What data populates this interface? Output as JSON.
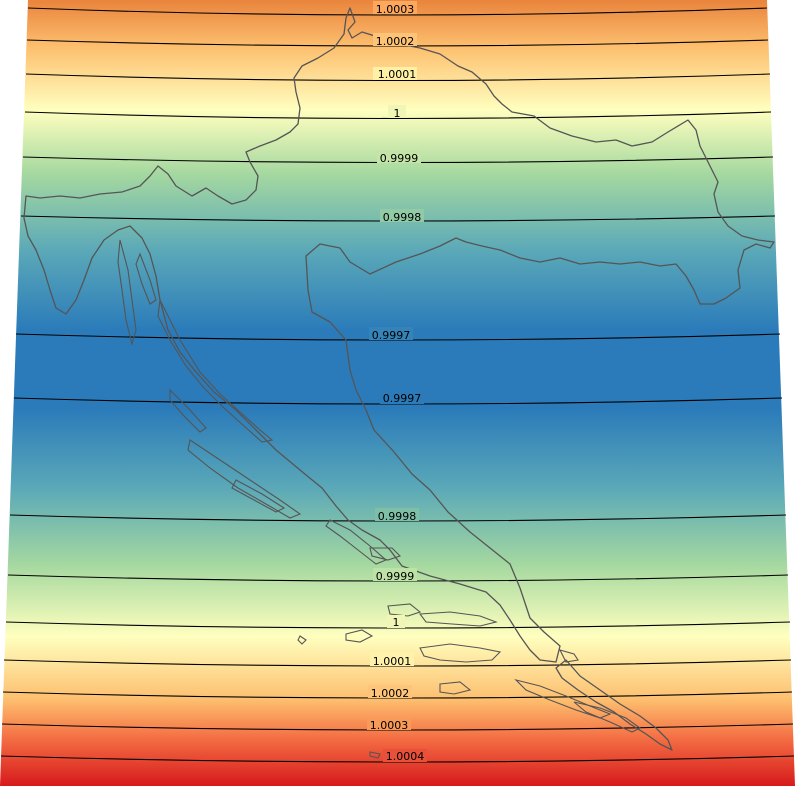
{
  "map": {
    "gradient_colors": {
      "top": "#e9843c",
      "orange": "#fdbf6f",
      "pale_yellow": "#ffffbf",
      "light_green": "#a6d9a0",
      "teal": "#5aa8b8",
      "blue": "#2b7bba",
      "bottom_red": "#d7191c"
    },
    "contours": [
      {
        "label": "1.0003"
      },
      {
        "label": "1.0002"
      },
      {
        "label": "1.0001"
      },
      {
        "label": "1"
      },
      {
        "label": "0.9999"
      },
      {
        "label": "0.9998"
      },
      {
        "label": "0.9997"
      },
      {
        "label": "0.9997"
      },
      {
        "label": "0.9998"
      },
      {
        "label": "0.9999"
      },
      {
        "label": "1"
      },
      {
        "label": "1.0001"
      },
      {
        "label": "1.0002"
      },
      {
        "label": "1.0003"
      },
      {
        "label": "1.0004"
      }
    ],
    "border_color": "#555555"
  }
}
